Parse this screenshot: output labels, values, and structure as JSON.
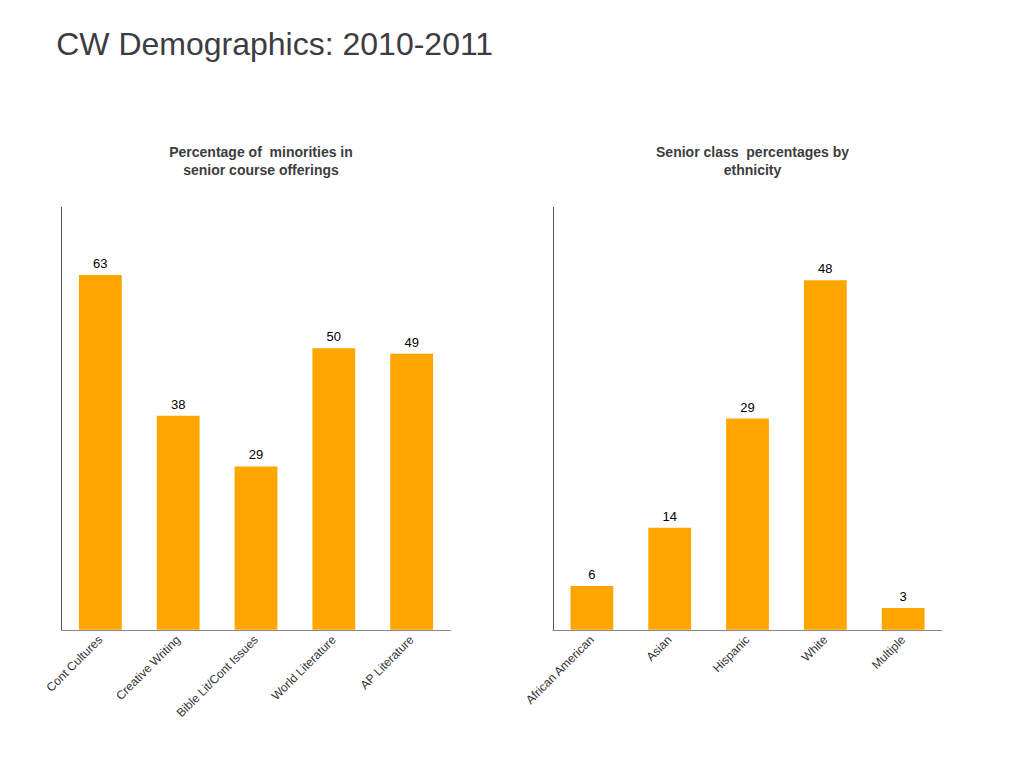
{
  "title": "CW Demographics: 2010-2011",
  "chart_data": [
    {
      "type": "bar",
      "title": "Percentage of  minorities in\nsenior course offerings",
      "categories": [
        "Cont Cultures",
        "Creative Writing",
        "Bible Lit/Cont Issues",
        "World Literature",
        "AP Literature"
      ],
      "values": [
        63,
        38,
        29,
        50,
        49
      ],
      "color": "#FFA500",
      "ylim": [
        0,
        75
      ],
      "grid": false,
      "data_labels": true,
      "tick_labels": "x"
    },
    {
      "type": "bar",
      "title": "Senior class  percentages by\nethnicity",
      "categories": [
        "African American",
        "Asian",
        "Hispanic",
        "White",
        "Multiple"
      ],
      "values": [
        6,
        14,
        29,
        48,
        3
      ],
      "color": "#FFA500",
      "ylim": [
        0,
        58
      ],
      "grid": false,
      "data_labels": true,
      "tick_labels": "x"
    }
  ]
}
